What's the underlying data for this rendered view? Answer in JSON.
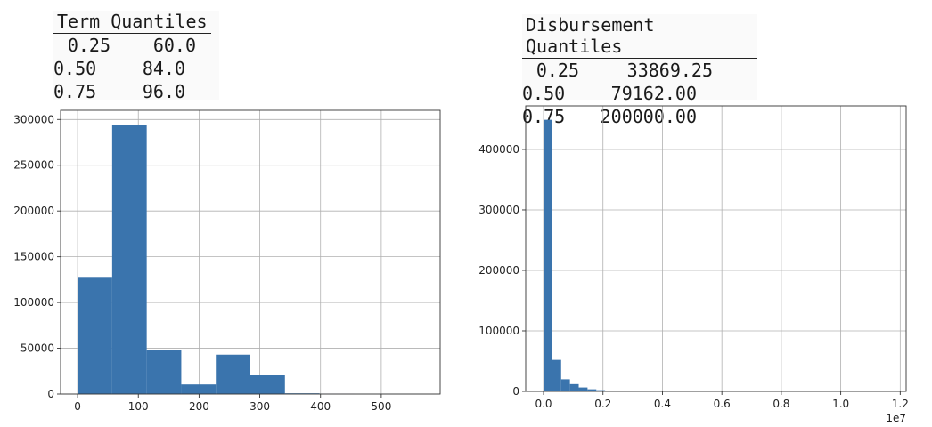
{
  "term_quantiles": {
    "title": "Term Quantiles",
    "rows": [
      {
        "q": "0.25",
        "v": "60.0"
      },
      {
        "q": "0.50",
        "v": "84.0"
      },
      {
        "q": "0.75",
        "v": "96.0"
      }
    ]
  },
  "disbursement_quantiles": {
    "title": "Disbursement Quantiles",
    "rows": [
      {
        "q": "0.25",
        "v": "33869.25"
      },
      {
        "q": "0.50",
        "v": "79162.00"
      },
      {
        "q": "0.75",
        "v": "200000.00"
      }
    ]
  },
  "chart_data": [
    {
      "type": "bar",
      "title": "",
      "xlabel": "",
      "ylabel": "",
      "bar_color": "#3a74ad",
      "grid": true,
      "xlim": [
        -28,
        597
      ],
      "ylim": [
        0,
        310000
      ],
      "xticks": [
        0,
        100,
        200,
        300,
        400,
        500
      ],
      "xtick_labels": [
        "0",
        "100",
        "200",
        "300",
        "400",
        "500"
      ],
      "yticks": [
        0,
        50000,
        100000,
        150000,
        200000,
        250000,
        300000
      ],
      "ytick_labels": [
        "0",
        "50000",
        "100000",
        "150000",
        "200000",
        "250000",
        "300000"
      ],
      "bins": [
        {
          "x0": 0,
          "x1": 56.9,
          "value": 128000
        },
        {
          "x0": 56.9,
          "x1": 113.8,
          "value": 293500
        },
        {
          "x0": 113.8,
          "x1": 170.7,
          "value": 48500
        },
        {
          "x0": 170.7,
          "x1": 227.6,
          "value": 10500
        },
        {
          "x0": 227.6,
          "x1": 284.5,
          "value": 43000
        },
        {
          "x0": 284.5,
          "x1": 341.4,
          "value": 20500
        },
        {
          "x0": 341.4,
          "x1": 398.3,
          "value": 800
        },
        {
          "x0": 398.3,
          "x1": 455.2,
          "value": 200
        },
        {
          "x0": 455.2,
          "x1": 512.1,
          "value": 100
        },
        {
          "x0": 512.1,
          "x1": 569,
          "value": 100
        }
      ]
    },
    {
      "type": "bar",
      "title": "",
      "xlabel": "",
      "ylabel": "",
      "bar_color": "#3a74ad",
      "grid": true,
      "offset_text": "1e7",
      "xlim": [
        -0.06,
        1.22
      ],
      "ylim": [
        0,
        472000
      ],
      "xticks": [
        0.0,
        0.2,
        0.4,
        0.6,
        0.8,
        1.0,
        1.2
      ],
      "xtick_labels": [
        "0.0",
        "0.2",
        "0.4",
        "0.6",
        "0.8",
        "1.0",
        "1.2"
      ],
      "yticks": [
        0,
        100000,
        200000,
        300000,
        400000
      ],
      "ytick_labels": [
        "0",
        "100000",
        "200000",
        "300000",
        "400000"
      ],
      "bins": [
        {
          "x0": 0.0,
          "x1": 0.0296,
          "value": 449000
        },
        {
          "x0": 0.0296,
          "x1": 0.0592,
          "value": 52000
        },
        {
          "x0": 0.0592,
          "x1": 0.0888,
          "value": 20000
        },
        {
          "x0": 0.0888,
          "x1": 0.1184,
          "value": 12000
        },
        {
          "x0": 0.1184,
          "x1": 0.148,
          "value": 6500
        },
        {
          "x0": 0.148,
          "x1": 0.1776,
          "value": 3500
        },
        {
          "x0": 0.1776,
          "x1": 0.2072,
          "value": 2000
        },
        {
          "x0": 0.2072,
          "x1": 0.2368,
          "value": 700
        },
        {
          "x0": 0.2368,
          "x1": 0.2664,
          "value": 400
        },
        {
          "x0": 0.2664,
          "x1": 0.296,
          "value": 200
        }
      ]
    }
  ]
}
